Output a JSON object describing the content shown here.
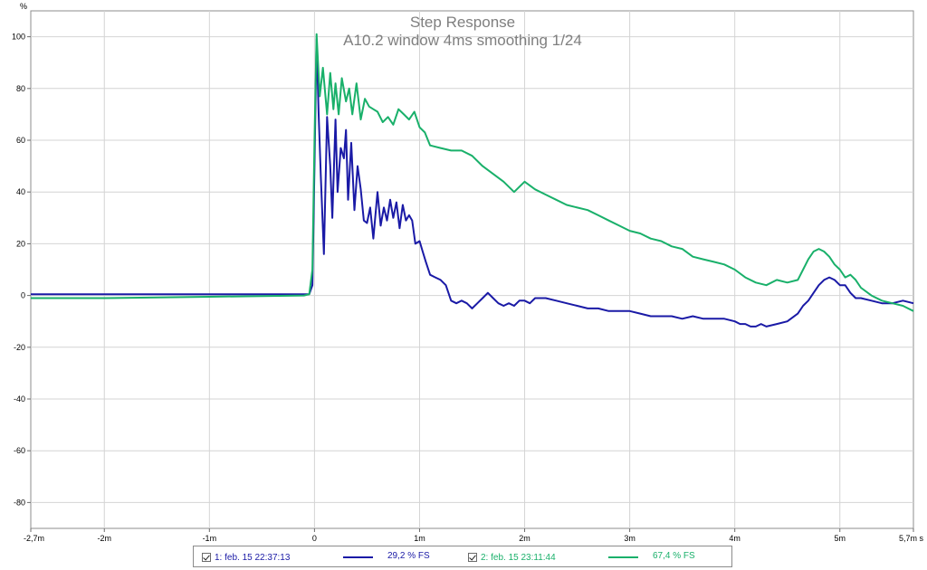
{
  "chart_data": {
    "type": "line",
    "title": "Step Response",
    "subtitle": "A10.2 window 4ms smoothing 1/24",
    "ylabel": "%",
    "xlim": [
      -2.7,
      5.7
    ],
    "ylim": [
      -90,
      110
    ],
    "grid": true,
    "x_ticks": [
      {
        "value": -2.7,
        "label": "-2,7m"
      },
      {
        "value": -2,
        "label": "-2m"
      },
      {
        "value": -1,
        "label": "-1m"
      },
      {
        "value": 0,
        "label": "0"
      },
      {
        "value": 1,
        "label": "1m"
      },
      {
        "value": 2,
        "label": "2m"
      },
      {
        "value": 3,
        "label": "3m"
      },
      {
        "value": 4,
        "label": "4m"
      },
      {
        "value": 5,
        "label": "5m"
      },
      {
        "value": 5.7,
        "label": "5,7m s"
      }
    ],
    "y_ticks": [
      {
        "value": 100,
        "label": "100"
      },
      {
        "value": 80,
        "label": "80"
      },
      {
        "value": 60,
        "label": "60"
      },
      {
        "value": 40,
        "label": "40"
      },
      {
        "value": 20,
        "label": "20"
      },
      {
        "value": 0,
        "label": "0"
      },
      {
        "value": -20,
        "label": "-20"
      },
      {
        "value": -40,
        "label": "-40"
      },
      {
        "value": -60,
        "label": "-60"
      },
      {
        "value": -80,
        "label": "-80"
      }
    ],
    "series": [
      {
        "name": "1: feb. 15 22:37:13",
        "value_label": "29,2 % FS",
        "color": "#1a1aa6",
        "x": [
          -2.7,
          -2,
          -1,
          -0.1,
          -0.05,
          -0.02,
          0,
          0.02,
          0.04,
          0.06,
          0.09,
          0.12,
          0.15,
          0.17,
          0.2,
          0.22,
          0.25,
          0.28,
          0.3,
          0.32,
          0.35,
          0.38,
          0.41,
          0.44,
          0.47,
          0.5,
          0.53,
          0.56,
          0.6,
          0.63,
          0.66,
          0.69,
          0.72,
          0.75,
          0.78,
          0.81,
          0.84,
          0.87,
          0.9,
          0.93,
          0.96,
          1,
          1.03,
          1.06,
          1.1,
          1.15,
          1.2,
          1.25,
          1.3,
          1.35,
          1.4,
          1.45,
          1.5,
          1.55,
          1.6,
          1.65,
          1.7,
          1.75,
          1.8,
          1.85,
          1.9,
          1.95,
          2,
          2.05,
          2.1,
          2.2,
          2.3,
          2.4,
          2.5,
          2.6,
          2.7,
          2.8,
          2.9,
          3,
          3.1,
          3.2,
          3.3,
          3.4,
          3.5,
          3.6,
          3.7,
          3.8,
          3.9,
          4,
          4.05,
          4.1,
          4.15,
          4.2,
          4.25,
          4.3,
          4.4,
          4.5,
          4.6,
          4.65,
          4.7,
          4.75,
          4.8,
          4.85,
          4.9,
          4.95,
          5,
          5.05,
          5.1,
          5.15,
          5.2,
          5.3,
          5.4,
          5.5,
          5.6,
          5.7
        ],
        "y": [
          0.5,
          0.5,
          0.5,
          0.5,
          0.5,
          4,
          50,
          99,
          70,
          46,
          16,
          69,
          50,
          30,
          68,
          40,
          57,
          53,
          64,
          37,
          59,
          33,
          50,
          41,
          29,
          28,
          34,
          22,
          40,
          27,
          34,
          29,
          37,
          30,
          36,
          26,
          35,
          29,
          31,
          29,
          20,
          21,
          17,
          13,
          8,
          7,
          6,
          4,
          -2,
          -3,
          -2,
          -3,
          -5,
          -3,
          -1,
          1,
          -1,
          -3,
          -4,
          -3,
          -4,
          -2,
          -2,
          -3,
          -1,
          -1,
          -2,
          -3,
          -4,
          -5,
          -5,
          -6,
          -6,
          -6,
          -7,
          -8,
          -8,
          -8,
          -9,
          -8,
          -9,
          -9,
          -9,
          -10,
          -11,
          -11,
          -12,
          -12,
          -11,
          -12,
          -11,
          -10,
          -7,
          -4,
          -2,
          1,
          4,
          6,
          7,
          6,
          4,
          4,
          1,
          -1,
          -1,
          -2,
          -3,
          -3,
          -2,
          -3
        ]
      },
      {
        "name": "2: feb. 15 23:11:44",
        "value_label": "67,4 % FS",
        "color": "#19b06a",
        "x": [
          -2.7,
          -2,
          -1,
          -0.1,
          -0.05,
          -0.02,
          0,
          0.02,
          0.05,
          0.08,
          0.12,
          0.15,
          0.18,
          0.2,
          0.23,
          0.26,
          0.3,
          0.33,
          0.36,
          0.4,
          0.44,
          0.48,
          0.52,
          0.56,
          0.6,
          0.65,
          0.7,
          0.75,
          0.8,
          0.85,
          0.9,
          0.95,
          1,
          1.05,
          1.1,
          1.2,
          1.3,
          1.4,
          1.5,
          1.6,
          1.7,
          1.8,
          1.9,
          2,
          2.1,
          2.2,
          2.3,
          2.4,
          2.5,
          2.6,
          2.7,
          2.8,
          2.9,
          3,
          3.1,
          3.2,
          3.3,
          3.4,
          3.5,
          3.6,
          3.7,
          3.8,
          3.9,
          4,
          4.1,
          4.2,
          4.3,
          4.4,
          4.5,
          4.6,
          4.65,
          4.7,
          4.75,
          4.8,
          4.85,
          4.9,
          4.95,
          5,
          5.05,
          5.1,
          5.15,
          5.2,
          5.3,
          5.4,
          5.5,
          5.6,
          5.7
        ],
        "y": [
          -1,
          -1,
          -0.5,
          0,
          0.5,
          10,
          60,
          101,
          77,
          88,
          70,
          86,
          72,
          82,
          70,
          84,
          75,
          80,
          70,
          82,
          68,
          76,
          73,
          72,
          71,
          67,
          69,
          66,
          72,
          70,
          68,
          71,
          65,
          63,
          58,
          57,
          56,
          56,
          54,
          50,
          47,
          44,
          40,
          44,
          41,
          39,
          37,
          35,
          34,
          33,
          31,
          29,
          27,
          25,
          24,
          22,
          21,
          19,
          18,
          15,
          14,
          13,
          12,
          10,
          7,
          5,
          4,
          6,
          5,
          6,
          10,
          14,
          17,
          18,
          17,
          15,
          12,
          10,
          7,
          8,
          6,
          3,
          0,
          -2,
          -3,
          -4,
          -6
        ]
      }
    ]
  }
}
